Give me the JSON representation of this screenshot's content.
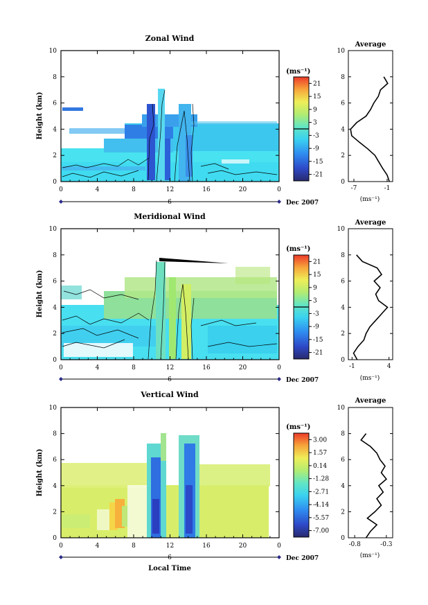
{
  "xlabel": "Local Time",
  "date_day": "6",
  "date_label": "Dec 2007",
  "ylabel": "Height (km)",
  "unit_label": "(ms⁻¹)",
  "avg_title": "Average",
  "chart_data": [
    {
      "type": "heatmap",
      "title": "Zonal Wind",
      "xlim": [
        0,
        24
      ],
      "ylim": [
        0,
        10
      ],
      "xticks": [
        "0",
        "4",
        "8",
        "12",
        "16",
        "20",
        "0"
      ],
      "yticks": [
        "0",
        "2",
        "4",
        "6",
        "8",
        "10"
      ],
      "colorbar": {
        "label": "(ms⁻¹)",
        "range": [
          -24,
          24
        ],
        "ticks": [
          "21",
          "15",
          "9",
          "3",
          "-3",
          "-9",
          "-15",
          "-21"
        ]
      },
      "average_profile": {
        "title": "Average",
        "xticks": [
          "-7",
          "-1"
        ],
        "xlim": [
          -8,
          0
        ],
        "heights": [
          0,
          0.5,
          1,
          1.5,
          2,
          2.5,
          3,
          3.5,
          4,
          4.5,
          5,
          5.5,
          6,
          6.5,
          7,
          7.5,
          8
        ],
        "values": [
          -0.6,
          -1.0,
          -1.8,
          -2.5,
          -3.2,
          -4.5,
          -6.0,
          -7.4,
          -7.6,
          -6.5,
          -4.8,
          -4.0,
          -3.4,
          -2.6,
          -2.2,
          -0.9,
          -1.6
        ]
      }
    },
    {
      "type": "heatmap",
      "title": "Meridional Wind",
      "xlim": [
        0,
        24
      ],
      "ylim": [
        0,
        10
      ],
      "xticks": [
        "0",
        "4",
        "8",
        "12",
        "16",
        "20",
        "0"
      ],
      "yticks": [
        "0",
        "2",
        "4",
        "6",
        "8",
        "10"
      ],
      "colorbar": {
        "label": "(ms⁻¹)",
        "range": [
          -24,
          24
        ],
        "ticks": [
          "21",
          "15",
          "9",
          "3",
          "-3",
          "-9",
          "-15",
          "-21"
        ]
      },
      "average_profile": {
        "title": "Average",
        "xticks": [
          "-1",
          "4"
        ],
        "xlim": [
          -1.5,
          4.5
        ],
        "heights": [
          0,
          0.5,
          1,
          1.5,
          2,
          2.5,
          3,
          3.5,
          4,
          4.5,
          5,
          5.5,
          6,
          6.5,
          7,
          7.5,
          8
        ],
        "values": [
          -0.3,
          -0.8,
          -0.2,
          0.6,
          0.9,
          1.4,
          2.2,
          3.0,
          3.8,
          2.6,
          2.2,
          2.8,
          2.0,
          3.0,
          2.4,
          0.4,
          -0.4
        ]
      }
    },
    {
      "type": "heatmap",
      "title": "Vertical Wind",
      "xlim": [
        0,
        24
      ],
      "ylim": [
        0,
        10
      ],
      "xticks": [
        "0",
        "4",
        "8",
        "12",
        "16",
        "20",
        "0"
      ],
      "yticks": [
        "0",
        "2",
        "4",
        "6",
        "8",
        "10"
      ],
      "colorbar": {
        "label": "(ms⁻¹)",
        "range": [
          -7.8,
          3.8
        ],
        "ticks": [
          "3.00",
          "1.57",
          "0.14",
          "-1.28",
          "-2.71",
          "-4.14",
          "-5.57",
          "-7.00"
        ]
      },
      "average_profile": {
        "title": "Average",
        "xticks": [
          "-0.8",
          "-0.3"
        ],
        "xlim": [
          -0.9,
          -0.2
        ],
        "heights": [
          0,
          0.5,
          1,
          1.5,
          2,
          2.5,
          3,
          3.5,
          4,
          4.5,
          5,
          5.5,
          6,
          6.5,
          7,
          7.5,
          8
        ],
        "values": [
          -0.62,
          -0.55,
          -0.45,
          -0.6,
          -0.48,
          -0.38,
          -0.45,
          -0.35,
          -0.42,
          -0.3,
          -0.38,
          -0.32,
          -0.4,
          -0.45,
          -0.55,
          -0.7,
          -0.62
        ]
      }
    }
  ]
}
